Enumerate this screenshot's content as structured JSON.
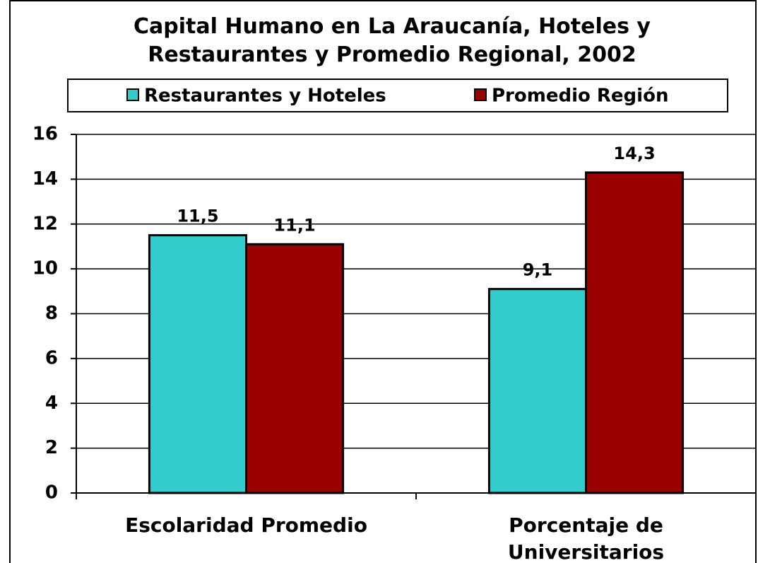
{
  "chart_data": {
    "type": "bar",
    "title": "Capital Humano en La Araucanía, Hoteles y Restaurantes y Promedio Regional, 2002",
    "categories": [
      "Escolaridad Promedio",
      "Porcentaje de Universitarios"
    ],
    "series": [
      {
        "name": "Restaurantes y Hoteles",
        "color": "#33cccc",
        "values": [
          11.5,
          9.1
        ],
        "value_labels": [
          "11,5",
          "9,1"
        ]
      },
      {
        "name": "Promedio Región",
        "color": "#990000",
        "values": [
          11.1,
          14.3
        ],
        "value_labels": [
          "11,1",
          "14,3"
        ]
      }
    ],
    "ylim": [
      0,
      16
    ],
    "yticks": [
      0,
      2,
      4,
      6,
      8,
      10,
      12,
      14,
      16
    ],
    "grid": true,
    "legend": "top"
  }
}
